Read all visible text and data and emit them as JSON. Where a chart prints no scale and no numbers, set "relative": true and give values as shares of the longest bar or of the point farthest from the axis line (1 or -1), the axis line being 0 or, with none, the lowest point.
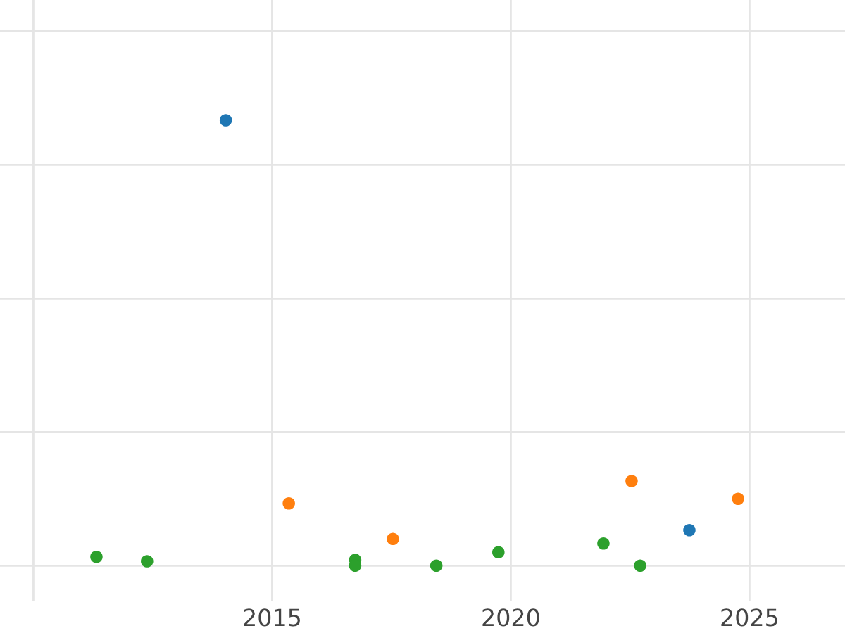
{
  "chart_data": {
    "type": "scatter",
    "relative": true,
    "grid": true,
    "tick_labels": "x",
    "marker": "circle",
    "xlim": [
      2009.3,
      2027.0
    ],
    "xticks": [
      {
        "value": 2010,
        "label": null
      },
      2015,
      2020,
      2025
    ],
    "series": [
      {
        "color": "#1f77b4",
        "x": [
          2014.03,
          2023.74
        ],
        "values": [
          1.0,
          0.08
        ]
      },
      {
        "color": "#ff7f0e",
        "x": [
          2015.35,
          2017.53,
          2022.53,
          2024.76
        ],
        "values": [
          0.14,
          0.06,
          0.19,
          0.15
        ]
      },
      {
        "color": "#2ca02c",
        "x": [
          2011.32,
          2012.38,
          2016.74,
          2016.74,
          2018.44,
          2019.74,
          2021.94,
          2022.71
        ],
        "values": [
          0.02,
          0.01,
          0.013,
          0.0,
          0.0,
          0.03,
          0.05,
          0.0
        ]
      }
    ]
  }
}
